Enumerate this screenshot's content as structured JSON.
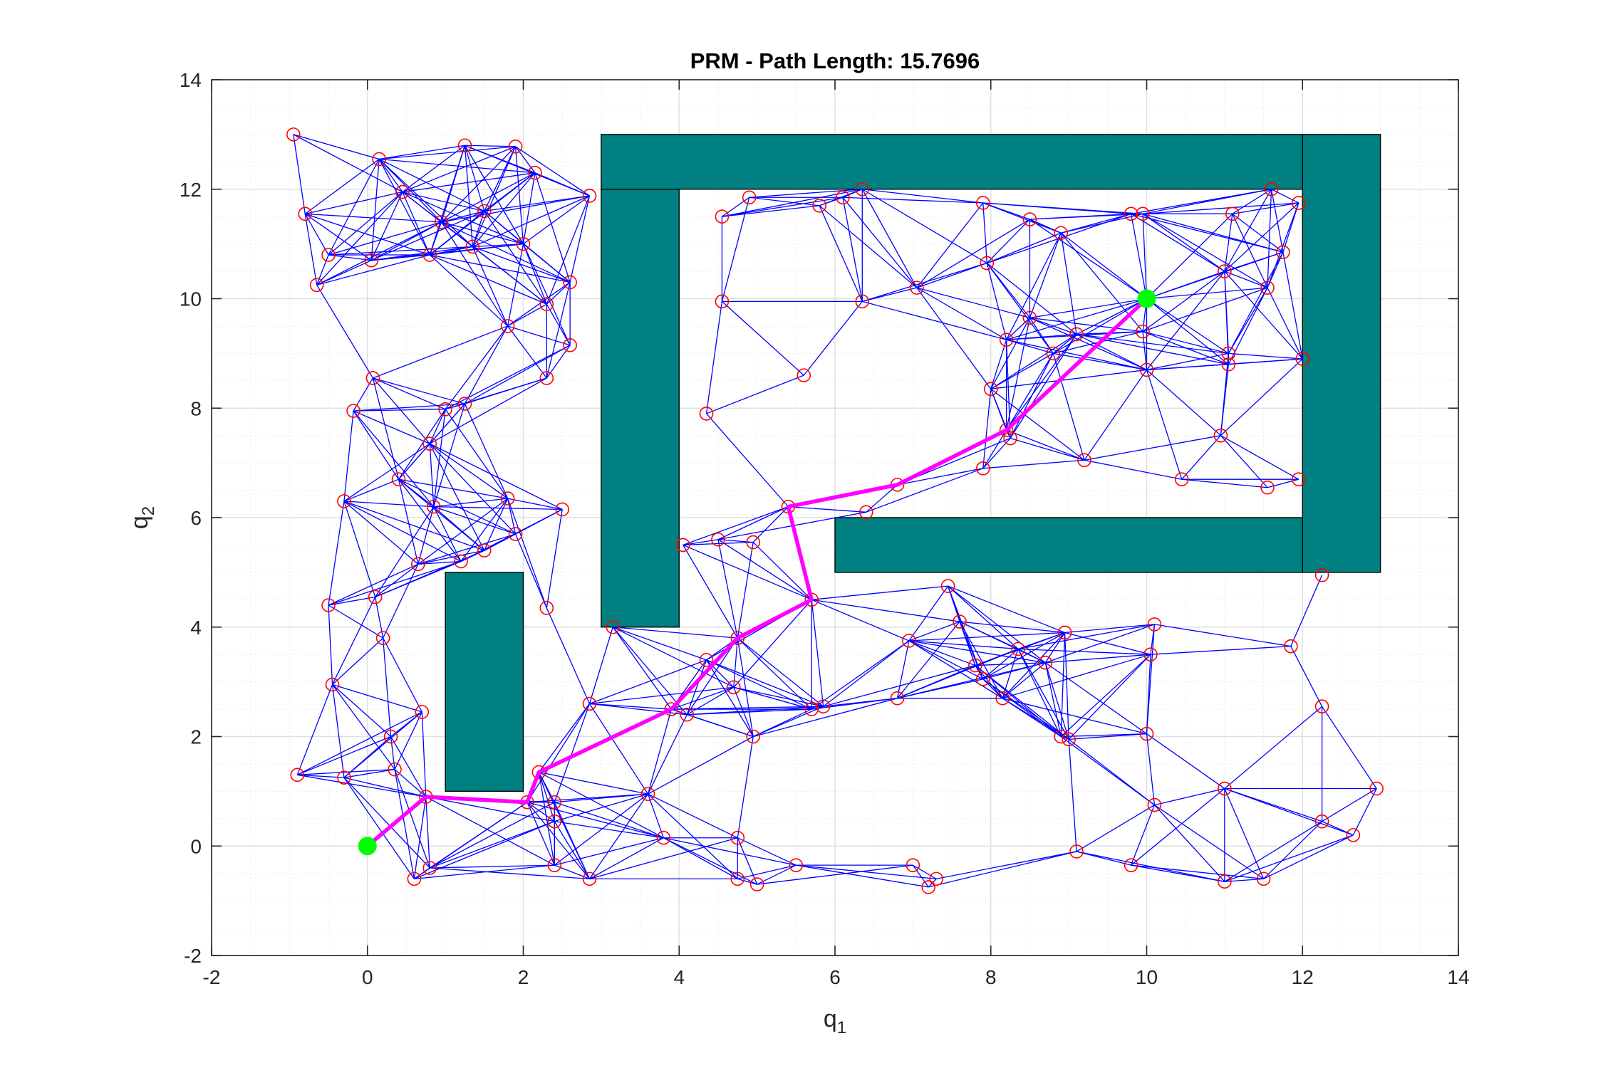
{
  "chart_data": {
    "type": "scatter",
    "title": "PRM - Path Length: 15.7696",
    "xlabel": {
      "base": "q",
      "sub": "1"
    },
    "ylabel": {
      "base": "q",
      "sub": "2"
    },
    "xlim": [
      -2,
      14
    ],
    "ylim": [
      -2,
      14
    ],
    "xticks": [
      -2,
      0,
      2,
      4,
      6,
      8,
      10,
      12,
      14
    ],
    "yticks": [
      -2,
      0,
      2,
      4,
      6,
      8,
      10,
      12,
      14
    ],
    "grid": true,
    "minor_grid": true,
    "colors": {
      "obstacle": "#008080",
      "edge": "#0000ff",
      "node": "#ff0000",
      "path": "#ff00ff",
      "endpoint": "#00ff00"
    },
    "obstacles": [
      {
        "x": [
          3,
          12
        ],
        "y": [
          12,
          13
        ]
      },
      {
        "x": [
          3,
          4
        ],
        "y": [
          4,
          12
        ]
      },
      {
        "x": [
          12,
          13
        ],
        "y": [
          5,
          13
        ]
      },
      {
        "x": [
          6,
          12
        ],
        "y": [
          5,
          6
        ]
      },
      {
        "x": [
          1,
          2
        ],
        "y": [
          1,
          5
        ]
      }
    ],
    "start": [
      0,
      0
    ],
    "goal": [
      10,
      10
    ],
    "path_length": 15.7696,
    "path": [
      [
        0,
        0
      ],
      [
        0.75,
        0.9
      ],
      [
        2.05,
        0.8
      ],
      [
        2.2,
        1.35
      ],
      [
        3.9,
        2.5
      ],
      [
        4.75,
        3.8
      ],
      [
        5.7,
        4.5
      ],
      [
        5.4,
        6.2
      ],
      [
        6.8,
        6.6
      ],
      [
        8.2,
        7.6
      ],
      [
        10,
        10
      ]
    ],
    "nodes": [
      [
        -0.95,
        13.0
      ],
      [
        0.15,
        12.55
      ],
      [
        1.25,
        12.8
      ],
      [
        1.9,
        12.78
      ],
      [
        2.15,
        12.3
      ],
      [
        2.85,
        11.88
      ],
      [
        -0.8,
        11.55
      ],
      [
        0.45,
        11.95
      ],
      [
        0.95,
        11.4
      ],
      [
        1.5,
        11.6
      ],
      [
        2.0,
        11.0
      ],
      [
        -0.5,
        10.8
      ],
      [
        0.05,
        10.7
      ],
      [
        0.8,
        10.8
      ],
      [
        1.35,
        10.95
      ],
      [
        -0.65,
        10.25
      ],
      [
        2.6,
        10.3
      ],
      [
        2.3,
        9.9
      ],
      [
        1.8,
        9.5
      ],
      [
        2.6,
        9.15
      ],
      [
        2.3,
        8.55
      ],
      [
        0.07,
        8.55
      ],
      [
        -0.18,
        7.95
      ],
      [
        1.0,
        7.98
      ],
      [
        1.25,
        8.08
      ],
      [
        0.8,
        7.35
      ],
      [
        -0.3,
        6.3
      ],
      [
        0.4,
        6.7
      ],
      [
        0.85,
        6.2
      ],
      [
        1.8,
        6.35
      ],
      [
        2.5,
        6.15
      ],
      [
        1.5,
        5.4
      ],
      [
        1.9,
        5.7
      ],
      [
        1.2,
        5.2
      ],
      [
        0.65,
        5.15
      ],
      [
        0.1,
        4.55
      ],
      [
        -0.5,
        4.4
      ],
      [
        2.3,
        4.35
      ],
      [
        0.2,
        3.8
      ],
      [
        -0.45,
        2.95
      ],
      [
        0.7,
        2.45
      ],
      [
        0.3,
        2.0
      ],
      [
        -0.9,
        1.3
      ],
      [
        -0.3,
        1.25
      ],
      [
        0.35,
        1.4
      ],
      [
        0.75,
        0.9
      ],
      [
        0.8,
        -0.4
      ],
      [
        0.6,
        -0.6
      ],
      [
        2.05,
        0.8
      ],
      [
        2.2,
        1.35
      ],
      [
        2.4,
        0.8
      ],
      [
        2.4,
        0.45
      ],
      [
        2.4,
        -0.35
      ],
      [
        2.85,
        2.6
      ],
      [
        2.85,
        -0.6
      ],
      [
        3.6,
        0.95
      ],
      [
        3.8,
        0.15
      ],
      [
        3.15,
        4.0
      ],
      [
        3.9,
        2.5
      ],
      [
        4.1,
        2.4
      ],
      [
        4.35,
        3.4
      ],
      [
        4.7,
        2.9
      ],
      [
        4.75,
        3.8
      ],
      [
        4.95,
        2.0
      ],
      [
        5.7,
        2.5
      ],
      [
        5.85,
        2.55
      ],
      [
        5.7,
        4.5
      ],
      [
        4.05,
        5.5
      ],
      [
        4.5,
        5.6
      ],
      [
        4.95,
        5.55
      ],
      [
        4.75,
        0.15
      ],
      [
        4.75,
        -0.6
      ],
      [
        5.0,
        -0.7
      ],
      [
        5.5,
        -0.35
      ],
      [
        4.35,
        7.9
      ],
      [
        4.55,
        11.5
      ],
      [
        4.55,
        9.95
      ],
      [
        4.9,
        11.85
      ],
      [
        5.6,
        8.6
      ],
      [
        5.8,
        11.7
      ],
      [
        6.1,
        11.85
      ],
      [
        6.35,
        12.0
      ],
      [
        6.35,
        9.95
      ],
      [
        7.05,
        10.2
      ],
      [
        6.4,
        6.1
      ],
      [
        6.8,
        6.6
      ],
      [
        5.4,
        6.2
      ],
      [
        6.8,
        2.7
      ],
      [
        6.95,
        3.75
      ],
      [
        7.45,
        4.75
      ],
      [
        7.6,
        4.1
      ],
      [
        7.8,
        3.3
      ],
      [
        7.9,
        3.05
      ],
      [
        8.15,
        2.7
      ],
      [
        8.35,
        3.6
      ],
      [
        8.7,
        3.35
      ],
      [
        8.9,
        2.0
      ],
      [
        8.95,
        3.9
      ],
      [
        9.0,
        1.95
      ],
      [
        7.0,
        -0.35
      ],
      [
        7.2,
        -0.75
      ],
      [
        7.3,
        -0.6
      ],
      [
        9.1,
        -0.1
      ],
      [
        9.8,
        -0.35
      ],
      [
        10.1,
        0.75
      ],
      [
        10.0,
        2.05
      ],
      [
        10.05,
        3.5
      ],
      [
        10.1,
        4.05
      ],
      [
        11.0,
        1.05
      ],
      [
        11.0,
        -0.65
      ],
      [
        11.5,
        -0.6
      ],
      [
        12.25,
        0.45
      ],
      [
        12.65,
        0.2
      ],
      [
        12.95,
        1.05
      ],
      [
        12.25,
        2.55
      ],
      [
        11.85,
        3.65
      ],
      [
        12.25,
        4.95
      ],
      [
        7.9,
        6.9
      ],
      [
        8.2,
        7.6
      ],
      [
        8.25,
        7.45
      ],
      [
        8.0,
        8.35
      ],
      [
        8.2,
        9.25
      ],
      [
        8.5,
        9.65
      ],
      [
        8.8,
        9.0
      ],
      [
        9.2,
        7.05
      ],
      [
        9.1,
        9.35
      ],
      [
        10.0,
        8.7
      ],
      [
        9.95,
        9.4
      ],
      [
        10.0,
        10.0
      ],
      [
        9.8,
        11.55
      ],
      [
        9.95,
        11.55
      ],
      [
        10.45,
        6.7
      ],
      [
        10.95,
        7.5
      ],
      [
        11.0,
        10.5
      ],
      [
        11.05,
        9.0
      ],
      [
        11.05,
        8.8
      ],
      [
        11.1,
        11.55
      ],
      [
        11.55,
        6.55
      ],
      [
        11.55,
        10.2
      ],
      [
        11.6,
        12.0
      ],
      [
        11.75,
        10.85
      ],
      [
        11.95,
        11.75
      ],
      [
        12.0,
        8.9
      ],
      [
        11.95,
        6.7
      ],
      [
        7.9,
        11.75
      ],
      [
        7.95,
        10.65
      ],
      [
        8.5,
        11.45
      ],
      [
        8.9,
        11.2
      ]
    ]
  }
}
